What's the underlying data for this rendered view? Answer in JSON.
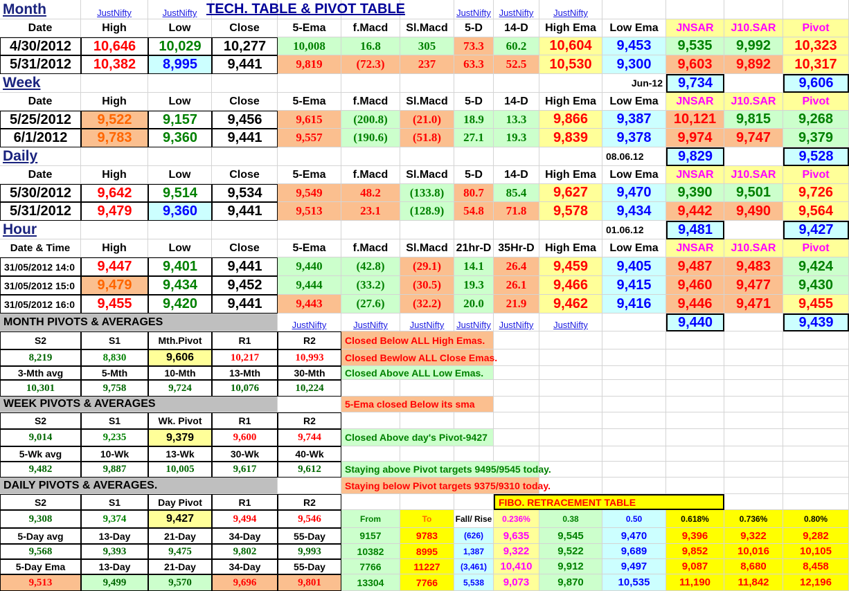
{
  "header": {
    "month": "Month",
    "title": "TECH. TABLE  &  PIVOT TABLE",
    "justnifty": "JustNifty"
  },
  "cols": {
    "date": "Date",
    "high": "High",
    "low": "Low",
    "close": "Close",
    "ema5": "5-Ema",
    "fmacd": "f.Macd",
    "slmacd": "Sl.Macd",
    "d5": "5-D",
    "d14": "14-D",
    "highema": "High Ema",
    "lowema": "Low Ema",
    "jnsar": "JNSAR",
    "j10sar": "J10.SAR",
    "pivot": "Pivot",
    "datetime": "Date & Time",
    "hr21": "21hr-D",
    "hr35": "35Hr-D"
  },
  "sections": {
    "week": "Week",
    "daily": "Daily",
    "hour": "Hour"
  },
  "month_rows": [
    [
      "4/30/2012",
      "10,646",
      "10,029",
      "10,277",
      "10,008",
      "16.8",
      "305",
      "73.3",
      "60.2",
      "10,604",
      "9,453",
      "9,535",
      "9,992",
      "10,323"
    ],
    [
      "5/31/2012",
      "10,382",
      "8,995",
      "9,441",
      "9,819",
      "(72.3)",
      "237",
      "63.3",
      "52.5",
      "10,530",
      "9,300",
      "9,603",
      "9,892",
      "10,317"
    ]
  ],
  "week_box": {
    "label": "Jun-12",
    "jnsar": "9,734",
    "pivot": "9,606"
  },
  "week_rows": [
    [
      "5/25/2012",
      "9,522",
      "9,157",
      "9,456",
      "9,615",
      "(200.8)",
      "(21.0)",
      "18.9",
      "13.3",
      "9,866",
      "9,387",
      "10,121",
      "9,815",
      "9,268"
    ],
    [
      "6/1/2012",
      "9,783",
      "9,360",
      "9,441",
      "9,557",
      "(190.6)",
      "(51.8)",
      "27.1",
      "19.3",
      "9,839",
      "9,378",
      "9,974",
      "9,747",
      "9,379"
    ]
  ],
  "daily_box": {
    "label": "08.06.12",
    "jnsar": "9,829",
    "pivot": "9,528"
  },
  "daily_rows": [
    [
      "5/30/2012",
      "9,642",
      "9,514",
      "9,534",
      "9,549",
      "48.2",
      "(133.8)",
      "80.7",
      "85.4",
      "9,627",
      "9,470",
      "9,390",
      "9,501",
      "9,726"
    ],
    [
      "5/31/2012",
      "9,479",
      "9,360",
      "9,441",
      "9,513",
      "23.1",
      "(128.9)",
      "54.8",
      "71.8",
      "9,578",
      "9,434",
      "9,442",
      "9,490",
      "9,564"
    ]
  ],
  "hour_box": {
    "label": "01.06.12",
    "jnsar": "9,481",
    "pivot": "9,427"
  },
  "hour_rows": [
    [
      "31/05/2012 14:0",
      "9,447",
      "9,401",
      "9,441",
      "9,440",
      "(42.8)",
      "(29.1)",
      "14.1",
      "26.4",
      "9,459",
      "9,405",
      "9,487",
      "9,483",
      "9,424"
    ],
    [
      "31/05/2012 15:0",
      "9,479",
      "9,434",
      "9,452",
      "9,444",
      "(33.2)",
      "(30.5)",
      "19.3",
      "26.1",
      "9,466",
      "9,415",
      "9,460",
      "9,477",
      "9,430"
    ],
    [
      "31/05/2012 16:0",
      "9,455",
      "9,420",
      "9,441",
      "9,443",
      "(27.6)",
      "(32.2)",
      "20.0",
      "21.9",
      "9,462",
      "9,416",
      "9,446",
      "9,471",
      "9,455"
    ]
  ],
  "hour_end": {
    "jnsar": "9,440",
    "pivot": "9,439"
  },
  "month_piv": {
    "title": "MONTH  PIVOTS  &  AVERAGES",
    "h1": [
      "S2",
      "S1",
      "Mth.Pivot",
      "R1",
      "R2"
    ],
    "v1": [
      "8,219",
      "8,830",
      "9,606",
      "10,217",
      "10,993"
    ],
    "h2": [
      "3-Mth avg",
      "5-Mth",
      "10-Mth",
      "13-Mth",
      "30-Mth"
    ],
    "v2": [
      "10,301",
      "9,758",
      "9,724",
      "10,076",
      "10,224"
    ]
  },
  "week_piv": {
    "title": "WEEK  PIVOTS  &  AVERAGES",
    "h1": [
      "S2",
      "S1",
      "Wk. Pivot",
      "R1",
      "R2"
    ],
    "v1": [
      "9,014",
      "9,235",
      "9,379",
      "9,600",
      "9,744"
    ],
    "h2": [
      "5-Wk avg",
      "10-Wk",
      "13-Wk",
      "30-Wk",
      "40-Wk"
    ],
    "v2": [
      "9,482",
      "9,887",
      "10,005",
      "9,617",
      "9,612"
    ]
  },
  "daily_piv": {
    "title": "DAILY  PIVOTS  &  AVERAGES.",
    "h1": [
      "S2",
      "S1",
      "Day  Pivot",
      "R1",
      "R2"
    ],
    "v1": [
      "9,308",
      "9,374",
      "9,427",
      "9,494",
      "9,546"
    ],
    "h2": [
      "5-Day avg",
      "13-Day",
      "21-Day",
      "34-Day",
      "55-Day"
    ],
    "v2": [
      "9,568",
      "9,393",
      "9,475",
      "9,802",
      "9,993"
    ],
    "h3": [
      "5-Day Ema",
      "13-Day",
      "21-Day",
      "34-Day",
      "55-Day"
    ],
    "v3": [
      "9,513",
      "9,499",
      "9,570",
      "9,696",
      "9,801"
    ]
  },
  "notes": [
    "Closed Below ALL High Emas.",
    "Closed Bewlow ALL Close Emas.",
    "Closed Above ALL Low Emas.",
    "5-Ema closed Below its sma",
    "Closed Above day's Pivot-9427",
    "Staying above Pivot targets 9495/9545 today.",
    "Staying below Pivot targets 9375/9310 today."
  ],
  "fibo": {
    "title": "FIBO. RETRACEMENT TABLE",
    "headers": [
      "From",
      "To",
      "Fall/ Rise",
      "0.236%",
      "0.38",
      "0.50",
      "0.618%",
      "0.736%",
      "0.80%"
    ],
    "rows": [
      [
        "9157",
        "9783",
        "(626)",
        "9,635",
        "9,545",
        "9,470",
        "9,396",
        "9,322",
        "9,282"
      ],
      [
        "10382",
        "8995",
        "1,387",
        "9,322",
        "9,522",
        "9,689",
        "9,852",
        "10,016",
        "10,105"
      ],
      [
        "7766",
        "11227",
        "(3,461)",
        "10,410",
        "9,912",
        "9,497",
        "9,087",
        "8,680",
        "8,458"
      ],
      [
        "13304",
        "7766",
        "5,538",
        "9,073",
        "9,870",
        "10,535",
        "11,190",
        "11,842",
        "12,196"
      ]
    ]
  },
  "colors": {
    "green_bg": "#ccffcc",
    "orange_bg": "#fbbf8f",
    "yellow_bg": "#ffff99",
    "cyan_bg": "#ccffff",
    "red": "#ff0000",
    "green": "#008000",
    "blue": "#0000ff"
  }
}
